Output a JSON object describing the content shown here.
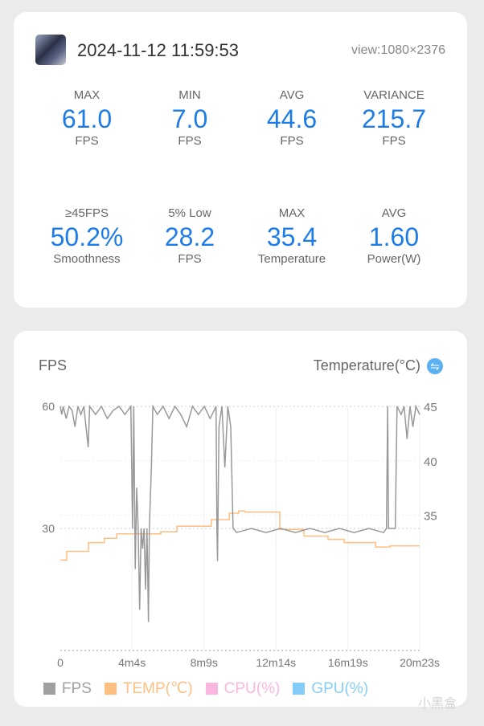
{
  "header": {
    "datetime": "2024-11-12 11:59:53",
    "view": "view:1080×2376"
  },
  "stats": [
    {
      "label": "MAX",
      "value": "61.0",
      "unit": "FPS"
    },
    {
      "label": "MIN",
      "value": "7.0",
      "unit": "FPS"
    },
    {
      "label": "AVG",
      "value": "44.6",
      "unit": "FPS"
    },
    {
      "label": "VARIANCE",
      "value": "215.7",
      "unit": "FPS"
    },
    {
      "label": "≥45FPS",
      "value": "50.2%",
      "unit": "Smoothness"
    },
    {
      "label": "5% Low",
      "value": "28.2",
      "unit": "FPS"
    },
    {
      "label": "MAX",
      "value": "35.4",
      "unit": "Temperature"
    },
    {
      "label": "AVG",
      "value": "1.60",
      "unit": "Power(W)"
    }
  ],
  "chart_header": {
    "left": "FPS",
    "right": "Temperature(°C)",
    "toggle_icon": "swap-icon"
  },
  "watermark": "小黑盒",
  "chart_data": {
    "type": "line",
    "xlabel": "",
    "x_unit": "seconds",
    "xlim": [
      0,
      1223
    ],
    "x_ticks": [
      {
        "v": 0,
        "label": "0"
      },
      {
        "v": 244,
        "label": "4m4s"
      },
      {
        "v": 489,
        "label": "8m9s"
      },
      {
        "v": 734,
        "label": "12m14s"
      },
      {
        "v": 979,
        "label": "16m19s"
      },
      {
        "v": 1223,
        "label": "20m23s"
      }
    ],
    "y_left": {
      "label": "FPS",
      "ylim": [
        0,
        60
      ],
      "ticks": [
        {
          "v": 60,
          "label": "60"
        },
        {
          "v": 30,
          "label": "30"
        }
      ]
    },
    "y_right": {
      "label": "Temperature(°C)",
      "ylim": [
        22.6,
        45
      ],
      "ticks": [
        {
          "v": 45,
          "label": "45"
        },
        {
          "v": 40,
          "label": "40"
        },
        {
          "v": 35,
          "label": "35"
        }
      ]
    },
    "legend": [
      {
        "name": "FPS",
        "color": "#a0a0a0"
      },
      {
        "name": "TEMP(℃)",
        "color": "#ffbf80"
      },
      {
        "name": "CPU(%)",
        "color": "#f9b6df"
      },
      {
        "name": "GPU(%)",
        "color": "#85cdf9"
      }
    ],
    "series": [
      {
        "name": "FPS",
        "axis": "left",
        "color": "#999999",
        "points": [
          [
            0,
            60
          ],
          [
            5,
            58
          ],
          [
            10,
            60
          ],
          [
            20,
            57
          ],
          [
            30,
            60
          ],
          [
            40,
            59
          ],
          [
            50,
            55
          ],
          [
            60,
            60
          ],
          [
            70,
            58
          ],
          [
            80,
            60
          ],
          [
            95,
            50
          ],
          [
            100,
            60
          ],
          [
            120,
            58
          ],
          [
            140,
            60
          ],
          [
            160,
            57
          ],
          [
            180,
            59
          ],
          [
            200,
            60
          ],
          [
            220,
            58
          ],
          [
            240,
            60
          ],
          [
            246,
            30
          ],
          [
            250,
            60
          ],
          [
            255,
            20
          ],
          [
            260,
            40
          ],
          [
            265,
            30
          ],
          [
            270,
            10
          ],
          [
            275,
            30
          ],
          [
            280,
            25
          ],
          [
            285,
            30
          ],
          [
            290,
            15
          ],
          [
            295,
            30
          ],
          [
            300,
            7
          ],
          [
            303,
            30
          ],
          [
            310,
            45
          ],
          [
            315,
            60
          ],
          [
            330,
            58
          ],
          [
            350,
            60
          ],
          [
            370,
            57
          ],
          [
            390,
            60
          ],
          [
            410,
            58
          ],
          [
            430,
            55
          ],
          [
            450,
            60
          ],
          [
            470,
            58
          ],
          [
            490,
            60
          ],
          [
            510,
            57
          ],
          [
            530,
            60
          ],
          [
            533,
            30
          ],
          [
            535,
            22
          ],
          [
            540,
            55
          ],
          [
            550,
            60
          ],
          [
            560,
            45
          ],
          [
            570,
            60
          ],
          [
            580,
            55
          ],
          [
            588,
            30
          ],
          [
            600,
            29
          ],
          [
            650,
            30
          ],
          [
            700,
            29
          ],
          [
            750,
            30
          ],
          [
            800,
            29
          ],
          [
            850,
            30
          ],
          [
            900,
            29
          ],
          [
            950,
            30
          ],
          [
            1000,
            29
          ],
          [
            1050,
            30
          ],
          [
            1100,
            29
          ],
          [
            1110,
            30
          ],
          [
            1114,
            60
          ],
          [
            1117,
            30
          ],
          [
            1140,
            30
          ],
          [
            1146,
            60
          ],
          [
            1160,
            58
          ],
          [
            1170,
            60
          ],
          [
            1180,
            52
          ],
          [
            1190,
            60
          ],
          [
            1200,
            55
          ],
          [
            1210,
            60
          ],
          [
            1223,
            58
          ]
        ]
      },
      {
        "name": "TEMP",
        "axis": "right",
        "color": "#ffbf80",
        "points": [
          [
            0,
            30.9
          ],
          [
            22,
            31.7
          ],
          [
            96,
            32.5
          ],
          [
            150,
            32.9
          ],
          [
            192,
            33.3
          ],
          [
            342,
            33.5
          ],
          [
            397,
            34.0
          ],
          [
            424,
            34.0
          ],
          [
            514,
            34.6
          ],
          [
            575,
            35.2
          ],
          [
            607,
            35.4
          ],
          [
            628,
            35.3
          ],
          [
            747,
            33.7
          ],
          [
            829,
            33.1
          ],
          [
            911,
            32.8
          ],
          [
            966,
            32.5
          ],
          [
            1073,
            32.1
          ],
          [
            1122,
            32.2
          ],
          [
            1223,
            32.2
          ]
        ]
      }
    ]
  }
}
